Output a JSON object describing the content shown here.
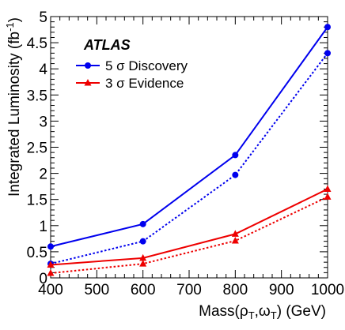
{
  "chart_data": {
    "type": "line",
    "xlabel": {
      "main": "Mass(ρ",
      "sub1": "T",
      "mid": ",ω",
      "sub2": "T",
      "tail": ") (GeV)"
    },
    "ylabel": {
      "main": "Integrated Luminosity (fb",
      "sup": "-1",
      "tail": ")"
    },
    "experiment_label": "ATLAS",
    "xlim": [
      400,
      1000
    ],
    "ylim": [
      0,
      5
    ],
    "xticks": [
      400,
      500,
      600,
      700,
      800,
      900,
      1000
    ],
    "yticks": [
      0,
      0.5,
      1,
      1.5,
      2,
      2.5,
      3,
      3.5,
      4,
      4.5,
      5
    ],
    "legend_position": "top-left",
    "series": [
      {
        "name": "5 σ Discovery",
        "color": "#0000ee",
        "marker": "circle",
        "line_style": "solid",
        "show_in_legend": true,
        "x": [
          400,
          600,
          800,
          1000
        ],
        "y": [
          0.6,
          1.03,
          2.35,
          4.8
        ]
      },
      {
        "color": "#0000ee",
        "marker": "circle",
        "line_style": "dotted",
        "show_in_legend": false,
        "x": [
          400,
          600,
          800,
          1000
        ],
        "y": [
          0.27,
          0.7,
          1.97,
          4.3
        ]
      },
      {
        "name": "3 σ Evidence",
        "color": "#ee0000",
        "marker": "triangle",
        "line_style": "solid",
        "show_in_legend": true,
        "x": [
          400,
          600,
          800,
          1000
        ],
        "y": [
          0.25,
          0.38,
          0.84,
          1.7
        ]
      },
      {
        "color": "#ee0000",
        "marker": "triangle",
        "line_style": "dotted",
        "show_in_legend": false,
        "x": [
          400,
          600,
          800,
          1000
        ],
        "y": [
          0.09,
          0.27,
          0.71,
          1.55
        ]
      }
    ]
  }
}
